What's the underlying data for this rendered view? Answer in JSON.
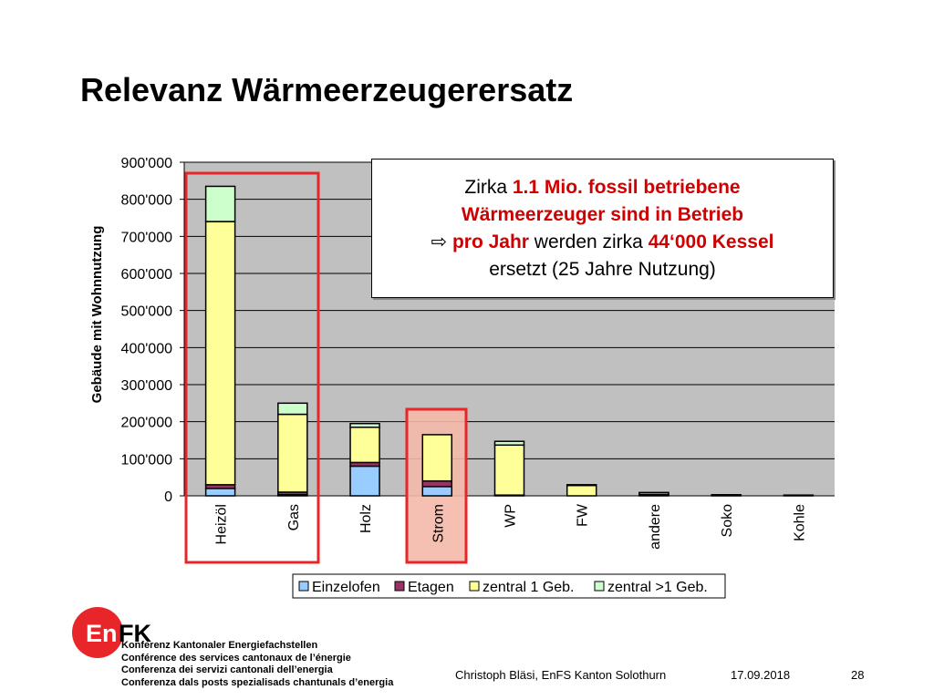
{
  "slide": {
    "title": "Relevanz Wärmeerzeugerersatz",
    "callout": {
      "l1a": "Zirka ",
      "l1b": "1.1 Mio. fossil betriebene",
      "l2": "Wärmeerzeuger sind in Betrieb",
      "arrow": "⇨ ",
      "l3a": "pro Jahr",
      "l3b": " werden zirka ",
      "l3c": "44‘000 Kessel",
      "l4": "ersetzt (25 Jahre Nutzung)"
    },
    "logo": {
      "en": "En",
      "fk": "FK"
    },
    "org_lines": [
      "Konferenz Kantonaler Energiefachstellen",
      "Conférence des services cantonaux de l’énergie",
      "Conferenza dei servizi cantonali dell’energia",
      "Conferenza dals posts spezialisads chantunals d’energia"
    ],
    "footer": {
      "author": "Christoph Bläsi, EnFS Kanton Solothurn",
      "date": "17.09.2018",
      "page": "28"
    },
    "highlight_color": "#e8262a"
  },
  "chart_data": {
    "type": "bar",
    "stacked": true,
    "categories": [
      "Heizöl",
      "Gas",
      "Holz",
      "Strom",
      "WP",
      "FW",
      "andere",
      "Soko",
      "Kohle"
    ],
    "ylabel": "Gebäude mit Wohnnutzung",
    "ylim": [
      0,
      900000
    ],
    "yticks": [
      0,
      100000,
      200000,
      300000,
      400000,
      500000,
      600000,
      700000,
      800000,
      900000
    ],
    "ytick_labels": [
      "0",
      "100'000",
      "200'000",
      "300'000",
      "400'000",
      "500'000",
      "600'000",
      "700'000",
      "800'000",
      "900'000"
    ],
    "grid": true,
    "legend_position": "bottom",
    "plot_background": "#c0c0c0",
    "series": [
      {
        "name": "Einzelofen",
        "color": "#99ccff",
        "values": [
          20000,
          3000,
          80000,
          25000,
          0,
          0,
          2000,
          0,
          0
        ]
      },
      {
        "name": "Etagen",
        "color": "#993366",
        "values": [
          10000,
          7000,
          10000,
          15000,
          2000,
          0,
          1000,
          0,
          0
        ]
      },
      {
        "name": "zentral 1 Geb.",
        "color": "#ffff99",
        "values": [
          710000,
          210000,
          95000,
          125000,
          135000,
          28000,
          5000,
          3000,
          2000
        ]
      },
      {
        "name": "zentral >1 Geb.",
        "color": "#ccffcc",
        "values": [
          95000,
          30000,
          10000,
          0,
          10000,
          2000,
          1000,
          0,
          0
        ]
      }
    ],
    "highlights": [
      {
        "categories": [
          "Heizöl",
          "Gas"
        ],
        "color": "#e8262a"
      },
      {
        "categories": [
          "Strom"
        ],
        "color": "#e8262a",
        "fill": "#f4b8a8"
      }
    ]
  }
}
